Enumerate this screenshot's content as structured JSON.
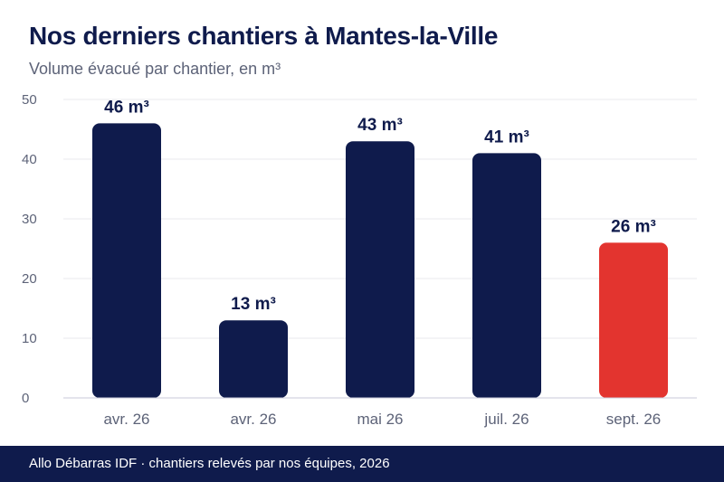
{
  "chart_data": {
    "type": "bar",
    "title": "Nos derniers chantiers à Mantes-la-Ville",
    "subtitle": "Volume évacué par chantier, en m³",
    "categories": [
      "avr. 26",
      "avr. 26",
      "mai 26",
      "juil. 26",
      "sept. 26"
    ],
    "values": [
      46,
      13,
      43,
      41,
      26
    ],
    "data_labels": [
      "46 m³",
      "13 m³",
      "43 m³",
      "41 m³",
      "26 m³"
    ],
    "highlight_index": 4,
    "ylim": [
      0,
      50
    ],
    "yticks": [
      "0",
      "10",
      "20",
      "30",
      "40",
      "50"
    ],
    "grid": true,
    "colors": {
      "bar": "#0f1b4c",
      "highlight": "#e3342f",
      "grid": "#e9e9ee",
      "axis": "#c8c9d8"
    }
  },
  "footer": {
    "text": "Allo Débarras IDF · chantiers relevés par nos équipes, 2026"
  }
}
